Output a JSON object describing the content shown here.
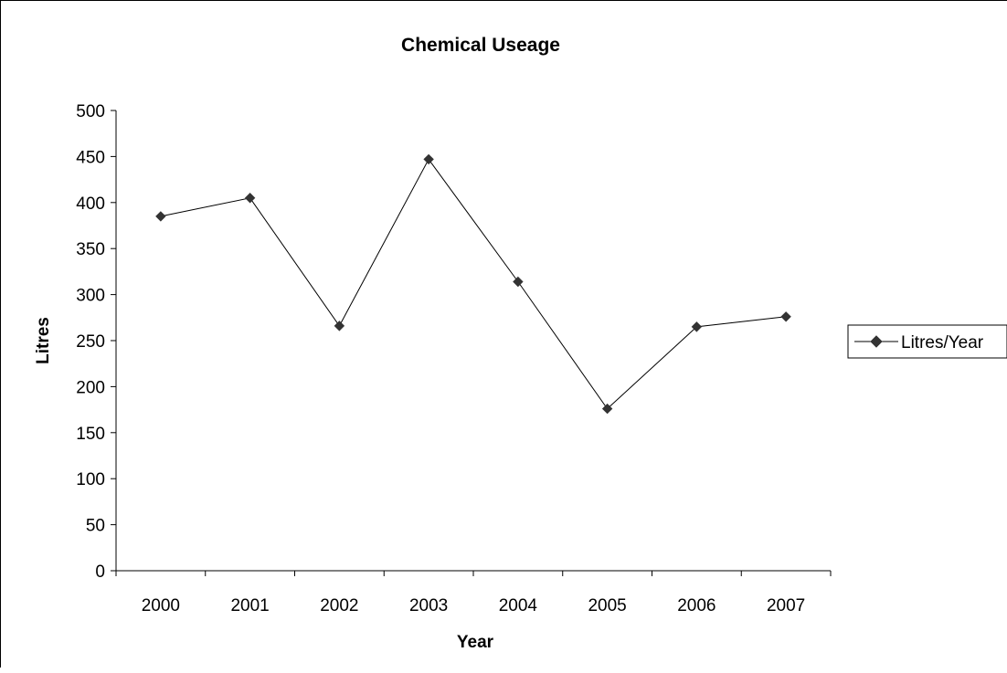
{
  "chart_data": {
    "type": "line",
    "title": "Chemical Useage",
    "xlabel": "Year",
    "ylabel": "Litres",
    "categories": [
      "2000",
      "2001",
      "2002",
      "2003",
      "2004",
      "2005",
      "2006",
      "2007"
    ],
    "series": [
      {
        "name": "Litres/Year",
        "values": [
          385,
          405,
          266,
          447,
          314,
          176,
          265,
          276
        ],
        "color": "#000000",
        "marker": "diamond"
      }
    ],
    "ylim": [
      0,
      500
    ],
    "yticks": [
      0,
      50,
      100,
      150,
      200,
      250,
      300,
      350,
      400,
      450,
      500
    ],
    "grid": false,
    "legend_position": "right"
  }
}
